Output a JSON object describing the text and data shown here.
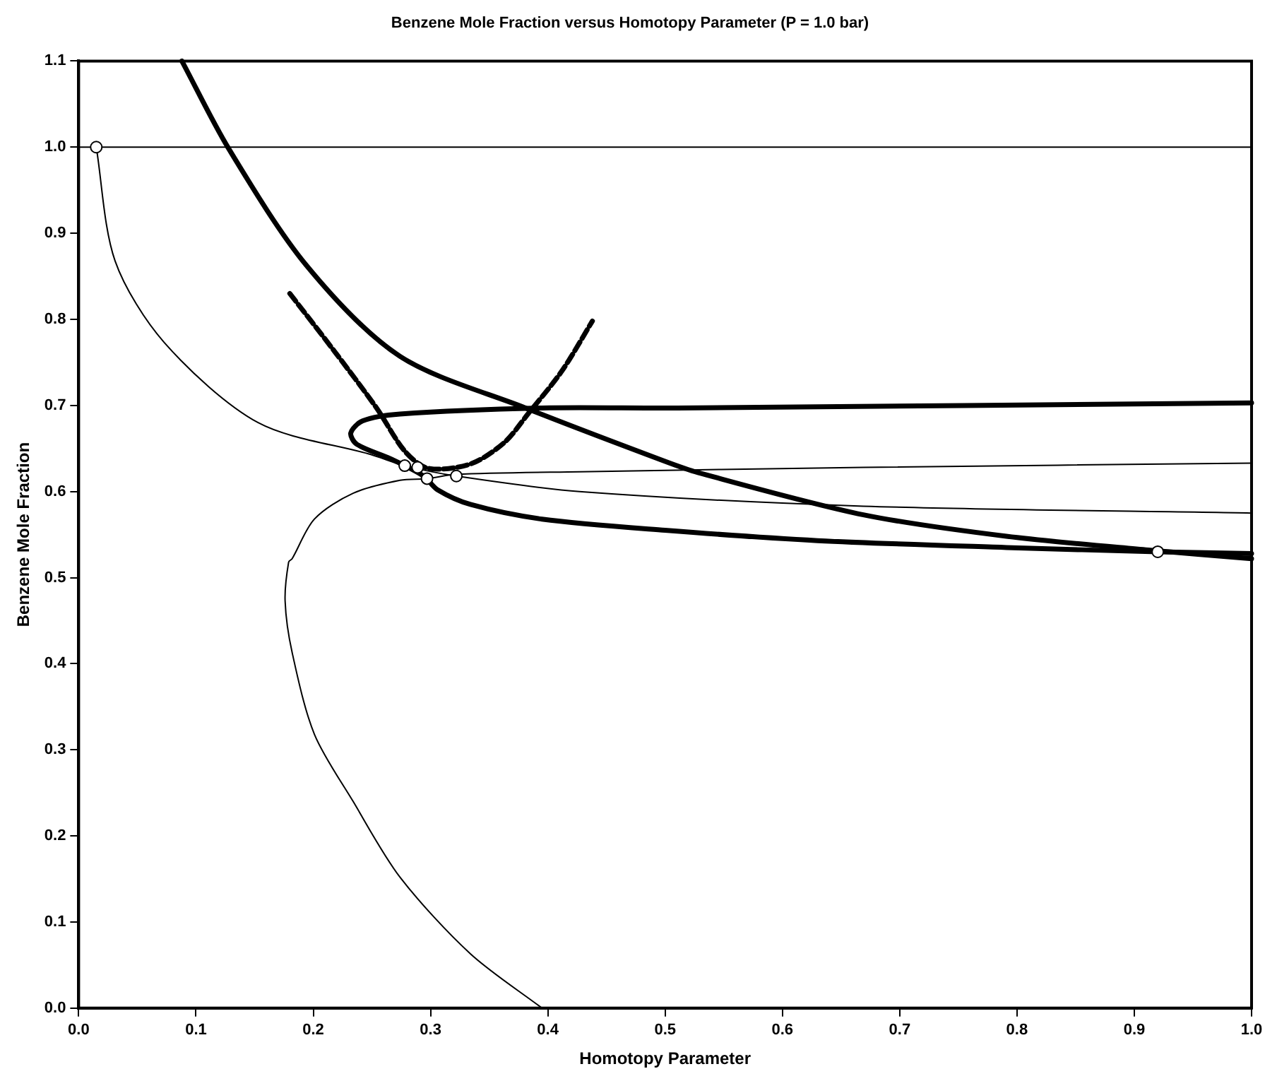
{
  "chart_data": {
    "type": "line",
    "title": "Benzene Mole Fraction versus Homotopy Parameter (P = 1.0 bar)",
    "xlabel": "Homotopy Parameter",
    "ylabel": "Benzene Mole Fraction",
    "xlim": [
      0,
      1
    ],
    "ylim": [
      0,
      1.1
    ],
    "xticks": [
      {
        "value": 0,
        "label": "0.0"
      },
      0.1,
      0.2,
      0.3,
      0.4,
      0.5,
      0.6,
      0.7,
      0.8,
      0.9,
      {
        "value": 1,
        "label": "1.0"
      }
    ],
    "yticks": [
      {
        "value": 0,
        "label": "0.0"
      },
      0.1,
      0.2,
      0.3,
      0.4,
      0.5,
      0.6,
      0.7,
      0.8,
      0.9,
      {
        "value": 1,
        "label": "1.0"
      },
      1.1
    ],
    "grid": false,
    "legend": false,
    "marker": "none",
    "line_style": "solid",
    "series": [
      {
        "color": "#000000",
        "x": [
          0,
          1
        ],
        "values": [
          1,
          1
        ]
      },
      {
        "color": "#000000",
        "x": [
          0.015,
          0.031,
          0.073,
          0.153,
          0.249,
          0.278,
          0.322,
          0.427,
          0.669,
          1.0
        ],
        "values": [
          1.0,
          0.868,
          0.773,
          0.68,
          0.643,
          0.63,
          0.618,
          0.6,
          0.583,
          0.575
        ]
      },
      {
        "color": "#000000",
        "x": [
          0.395,
          0.334,
          0.274,
          0.234,
          0.201,
          0.182,
          0.176,
          0.179,
          0.182,
          0.201,
          0.234,
          0.274,
          0.297,
          0.322,
          0.427,
          0.669,
          1.0
        ],
        "values": [
          0,
          0.063,
          0.152,
          0.24,
          0.318,
          0.413,
          0.473,
          0.518,
          0.522,
          0.568,
          0.598,
          0.613,
          0.615,
          0.62,
          0.623,
          0.628,
          0.633
        ]
      },
      {
        "color": "#000000",
        "x": [
          0.088,
          0.128,
          0.194,
          0.274,
          0.381,
          0.5,
          0.528,
          0.669,
          0.791,
          0.912,
          1.0
        ],
        "values": [
          1.1,
          0.998,
          0.863,
          0.757,
          0.697,
          0.635,
          0.622,
          0.573,
          0.548,
          0.532,
          0.522
        ]
      },
      {
        "color": "#000000",
        "x": [
          1.0,
          0.51,
          0.395,
          0.274,
          0.242,
          0.232,
          0.237,
          0.266,
          0.294,
          0.306,
          0.334,
          0.395,
          0.5,
          0.63,
          0.791,
          0.92,
          1.0
        ],
        "values": [
          0.703,
          0.697,
          0.697,
          0.69,
          0.682,
          0.668,
          0.655,
          0.638,
          0.618,
          0.602,
          0.585,
          0.568,
          0.555,
          0.543,
          0.535,
          0.53,
          0.528
        ]
      },
      {
        "color": "#000000",
        "line_style": "dashed",
        "x": [
          0.18,
          0.218,
          0.254,
          0.278,
          0.298,
          0.334,
          0.363,
          0.383,
          0.412,
          0.438
        ],
        "values": [
          0.83,
          0.763,
          0.697,
          0.647,
          0.627,
          0.632,
          0.657,
          0.69,
          0.74,
          0.798
        ]
      },
      {
        "type": "scatter",
        "color": "#000000",
        "marker": "circle",
        "x": [
          0.015,
          0.278,
          0.289,
          0.297,
          0.322,
          0.92
        ],
        "values": [
          1.0,
          0.63,
          0.628,
          0.615,
          0.618,
          0.53
        ]
      }
    ]
  }
}
